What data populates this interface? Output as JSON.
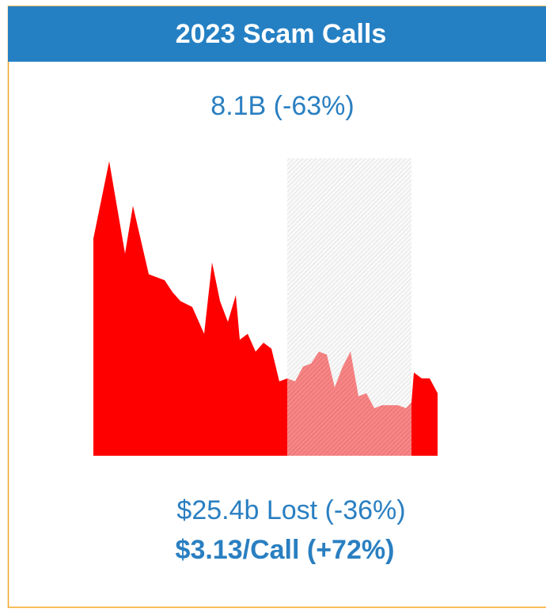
{
  "chart_data": {
    "type": "area",
    "title": "2023 Scam Calls",
    "subtitle": "8.1B (-63%)",
    "annotations": [
      "$25.4b Lost (-36%)",
      "$3.13/Call (+72%)"
    ],
    "color": "#ff0000",
    "x": [
      0,
      20,
      40,
      50,
      70,
      90,
      100,
      110,
      125,
      140,
      150,
      160,
      170,
      180,
      185,
      195,
      205,
      215,
      225,
      235,
      245,
      255,
      265,
      275,
      285,
      295,
      305,
      315,
      325,
      335,
      345,
      355,
      365,
      375,
      385,
      395,
      402,
      405,
      415,
      425,
      435
    ],
    "values": [
      73,
      99,
      68,
      84,
      61,
      59,
      55,
      52,
      50,
      41,
      65,
      52,
      45,
      54,
      39,
      41,
      35,
      38,
      36,
      25,
      26,
      25,
      30,
      31,
      35,
      34,
      23,
      30,
      35,
      20,
      21,
      16,
      17,
      17,
      17,
      16,
      18,
      28,
      26,
      26,
      21
    ],
    "xlim": [
      0,
      435
    ],
    "ylim": [
      0,
      100
    ],
    "highlight": [
      245,
      402
    ]
  }
}
